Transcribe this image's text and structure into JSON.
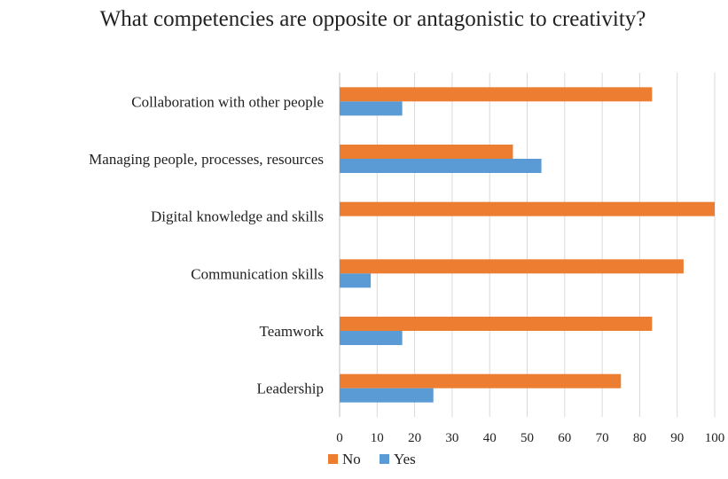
{
  "chart_data": {
    "type": "bar",
    "orientation": "horizontal",
    "title": "What competencies are opposite or antagonistic to creativity?",
    "xlabel": "",
    "ylabel": "",
    "categories": [
      "Collaboration with other people",
      "Managing people, processes, resources",
      "Digital knowledge and skills",
      "Communication skills",
      "Teamwork",
      "Leadership"
    ],
    "series": [
      {
        "name": "No",
        "color": "#ED7D31",
        "values": [
          83.3,
          46.2,
          100,
          91.7,
          83.3,
          75
        ]
      },
      {
        "name": "Yes",
        "color": "#5B9BD5",
        "values": [
          16.7,
          53.8,
          0,
          8.3,
          16.7,
          25
        ]
      }
    ],
    "xlim": [
      0,
      100
    ],
    "xticks": [
      "0",
      "10",
      "20",
      "30",
      "40",
      "50",
      "60",
      "70",
      "80",
      "90",
      "100"
    ],
    "grid": "vertical",
    "gridline_color": "#D9D9D9",
    "legend_position": "bottom-left"
  }
}
